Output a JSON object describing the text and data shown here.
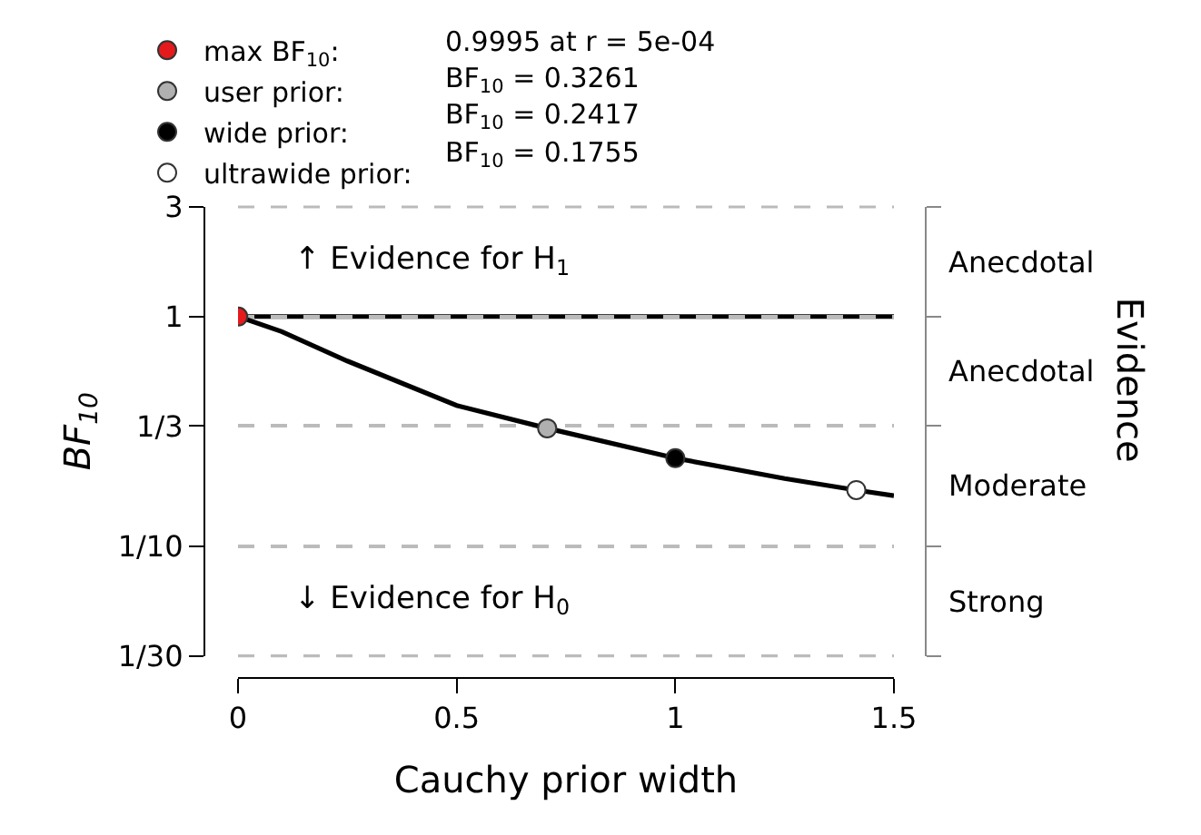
{
  "chart_data": {
    "type": "line",
    "xlabel": "Cauchy prior width",
    "ylabel": "BF$_{10}$",
    "xlim": [
      0,
      1.5
    ],
    "xticks": [
      0,
      0.5,
      1,
      1.5
    ],
    "ylim": [
      0.03333,
      3
    ],
    "log": "y",
    "yticks": [
      {
        "value": 3,
        "label": "3"
      },
      {
        "value": 1,
        "label": "1"
      },
      {
        "value": 0.3333,
        "label": "1/3"
      },
      {
        "value": 0.1,
        "label": "1/10"
      },
      {
        "value": 0.03333,
        "label": "1/30"
      }
    ],
    "legend": "top left",
    "grid": "y",
    "series": [
      {
        "color": "#000000",
        "x": [
          0,
          0.1,
          0.25,
          0.5,
          0.707,
          1,
          1.25,
          1.414,
          1.5
        ],
        "values": [
          0.9995,
          0.86,
          0.64,
          0.41,
          0.3261,
          0.2417,
          0.197,
          0.1755,
          0.166
        ]
      },
      {
        "type": "scatter",
        "marker": "circle",
        "name": "max BF$_{10}$:",
        "color": "#e41a1c",
        "x": [
          0.0005
        ],
        "values": [
          0.9995
        ]
      },
      {
        "type": "scatter",
        "marker": "circle",
        "name": "user prior:",
        "color": "#b0b0b0",
        "x": [
          0.707
        ],
        "values": [
          0.3261
        ]
      },
      {
        "type": "scatter",
        "marker": "circle",
        "name": "wide prior:",
        "color": "#000000",
        "x": [
          1
        ],
        "values": [
          0.2417
        ]
      },
      {
        "type": "scatter",
        "marker": "circle",
        "name": "ultrawide prior:",
        "color": "#ffffff",
        "x": [
          1.414
        ],
        "values": [
          0.1755
        ]
      }
    ],
    "ref_lines": [
      {
        "axis": "y",
        "value": 1,
        "color": "#000000",
        "line_style": "solid"
      }
    ],
    "annotations": [
      "0.9995 at r = 5e-04",
      "BF$_{10}$ = 0.3261",
      "BF$_{10}$ = 0.2417",
      "BF$_{10}$ = 0.1755",
      "↑ Evidence for H$_{1}$",
      "↓ Evidence for H$_{0}$",
      "Anecdotal",
      "Anecdotal",
      "Moderate",
      "Strong",
      "Evidence"
    ]
  }
}
